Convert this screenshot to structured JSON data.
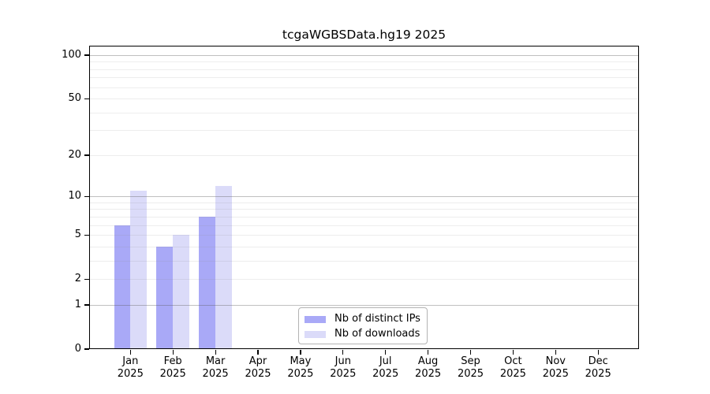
{
  "title": "tcgaWGBSData.hg19 2025",
  "legend": {
    "items": [
      {
        "label": "Nb of distinct IPs",
        "color": "#a9a9f7"
      },
      {
        "label": "Nb of downloads",
        "color": "#dbdbf9"
      }
    ]
  },
  "chart_data": {
    "type": "bar",
    "title": "tcgaWGBSData.hg19 2025",
    "y_scale": "log10(1+x)",
    "ylim": [
      0,
      116
    ],
    "grid": "horizontal",
    "legend_position": "lower center, inside plot",
    "categories": [
      "Jan",
      "Feb",
      "Mar",
      "Apr",
      "May",
      "Jun",
      "Jul",
      "Aug",
      "Sep",
      "Oct",
      "Nov",
      "Dec"
    ],
    "category_year": "2025",
    "series": [
      {
        "name": "Nb of distinct IPs",
        "color": "#a9a9f7",
        "values": [
          6,
          4,
          7,
          0,
          0,
          0,
          0,
          0,
          0,
          0,
          0,
          0
        ]
      },
      {
        "name": "Nb of downloads",
        "color": "#dbdbf9",
        "values": [
          11,
          5,
          12,
          0,
          0,
          0,
          0,
          0,
          0,
          0,
          0,
          0
        ]
      }
    ],
    "y_tick_labels": [
      "100",
      "50",
      "20",
      "10",
      "5",
      "2",
      "1",
      "0"
    ],
    "major_gridlines": [
      1,
      10,
      100
    ],
    "minor_gridlines": [
      2,
      3,
      4,
      5,
      6,
      7,
      8,
      9,
      20,
      30,
      40,
      50,
      60,
      70,
      80,
      90
    ]
  },
  "colors": {
    "background": "#ffffff",
    "axis": "#000000",
    "text": "#000000"
  }
}
